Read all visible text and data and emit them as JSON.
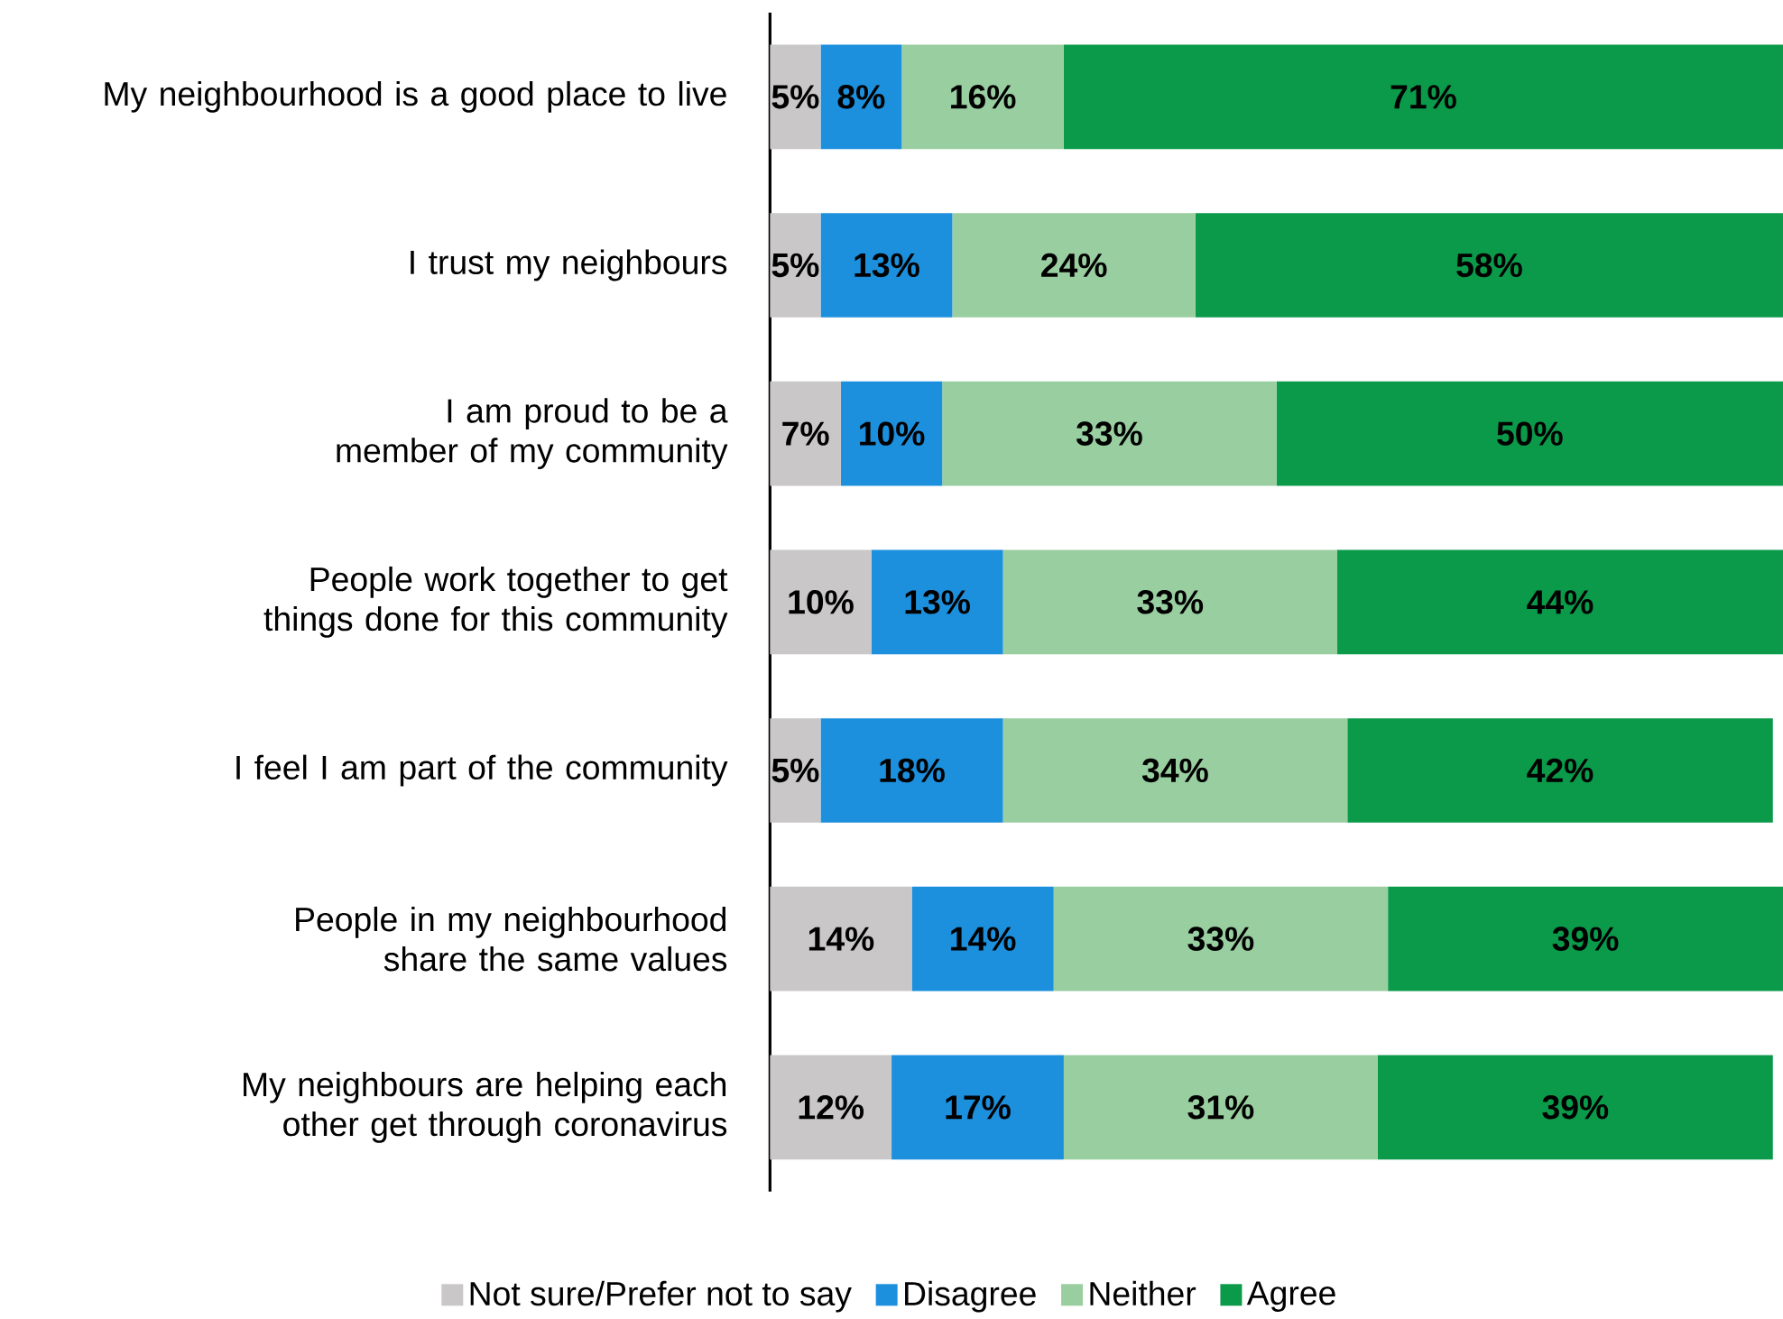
{
  "chart_data": {
    "type": "bar",
    "orientation": "horizontal",
    "stacked": true,
    "categories": [
      "My neighbourhood is a good place to live",
      "I trust my neighbours",
      "I am proud to be a member of my community",
      "People work together to get things done for this community",
      "I feel I am part of the community",
      "People in my neighbourhood share the same values",
      "My neighbours are helping each other get through coronavirus"
    ],
    "series": [
      {
        "name": "Not sure/Prefer not to say",
        "color": "#c9c7c8",
        "values": [
          5,
          5,
          7,
          10,
          5,
          14,
          12
        ],
        "value_labels": [
          "5%",
          "5%",
          "7%",
          "10%",
          "5%",
          "14%",
          "12%"
        ]
      },
      {
        "name": "Disagree",
        "color": "#1c8fdd",
        "values": [
          8,
          13,
          10,
          13,
          18,
          14,
          17
        ],
        "value_labels": [
          "8%",
          "13%",
          "10%",
          "13%",
          "18%",
          "14%",
          "17%"
        ]
      },
      {
        "name": "Neither",
        "color": "#99cea0",
        "values": [
          16,
          24,
          33,
          33,
          34,
          33,
          31
        ],
        "value_labels": [
          "16%",
          "24%",
          "33%",
          "33%",
          "34%",
          "33%",
          "31%"
        ]
      },
      {
        "name": "Agree",
        "color": "#0a9a4a",
        "values": [
          71,
          58,
          50,
          44,
          42,
          39,
          39
        ],
        "value_labels": [
          "71%",
          "58%",
          "50%",
          "44%",
          "42%",
          "39%",
          "39%"
        ]
      }
    ],
    "xlim": [
      0,
      100
    ],
    "tick_labels": "y",
    "legend": "bottom"
  }
}
